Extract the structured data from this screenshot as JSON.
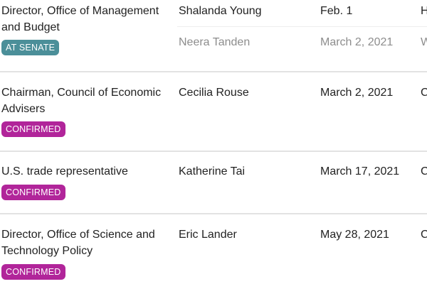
{
  "rows": [
    {
      "position": "Director, Office of Management and Budget",
      "status_badge": "AT SENATE",
      "nominees": [
        {
          "name": "Shalanda Young",
          "date": "Feb. 1",
          "status_trunc": "H",
          "muted": false
        },
        {
          "name": "Neera Tanden",
          "date": "March 2, 2021",
          "status_trunc": "W",
          "muted": true
        }
      ]
    },
    {
      "position": "Chairman, Council of Economic Advisers",
      "status_badge": "CONFIRMED",
      "nominees": [
        {
          "name": "Cecilia Rouse",
          "date": "March 2, 2021",
          "status_trunc": "C",
          "muted": false
        }
      ]
    },
    {
      "position": "U.S. trade representative",
      "status_badge": "CONFIRMED",
      "nominees": [
        {
          "name": "Katherine Tai",
          "date": "March 17, 2021",
          "status_trunc": "C",
          "muted": false
        }
      ]
    },
    {
      "position": "Director, Office of Science and Technology Policy",
      "status_badge": "CONFIRMED",
      "nominees": [
        {
          "name": "Eric Lander",
          "date": "May 28, 2021",
          "status_trunc": "C",
          "muted": false
        }
      ]
    }
  ],
  "colors": {
    "at_senate_badge": "#4b8f99",
    "confirmed_badge": "#b1259a",
    "muted_text": "#8d8d8d",
    "divider": "#e2e2e2"
  }
}
